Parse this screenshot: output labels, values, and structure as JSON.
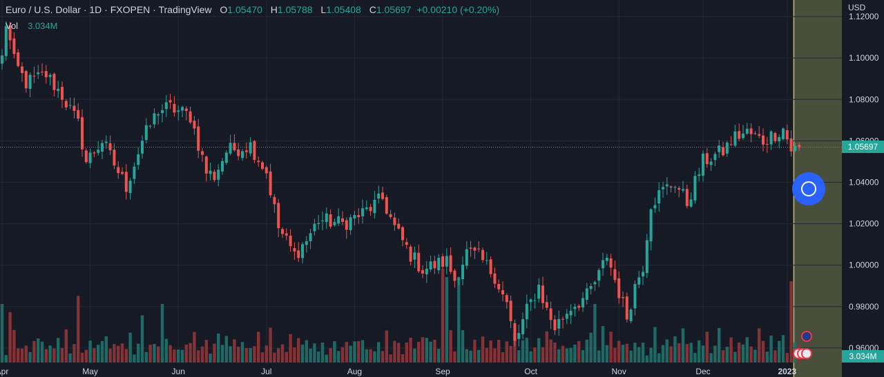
{
  "legend": {
    "title": "Euro / U.S. Dollar · 1D · FXOPEN · TradingView",
    "o_key": "O",
    "o_val": "1.05470",
    "h_key": "H",
    "h_val": "1.05788",
    "l_key": "L",
    "l_val": "1.05408",
    "c_key": "C",
    "c_val": "1.05697",
    "change": "+0.00210 (+0.20%)",
    "vol_label": "Vol",
    "vol_value": "3.034M"
  },
  "axis": {
    "currency": "USD",
    "current_price_label": "1.05697",
    "current_volume_label": "3.034M"
  },
  "colors": {
    "bull": "#26a69a",
    "bear": "#ef5350",
    "background": "#161a25",
    "highlight": "#5b6243",
    "button": "#2962ff"
  },
  "chart_data": {
    "type": "candlestick",
    "x_label": "",
    "y_label": "",
    "ylim": [
      0.946,
      1.128
    ],
    "y_ticks": [
      "1.12000",
      "1.10000",
      "1.08000",
      "1.06000",
      "1.04000",
      "1.02000",
      "1.00000",
      "0.98000",
      "0.96000"
    ],
    "y_tick_values": [
      1.12,
      1.1,
      1.08,
      1.06,
      1.04,
      1.02,
      1.0,
      0.98,
      0.96
    ],
    "x_ticks": [
      "Apr",
      "May",
      "Jun",
      "Jul",
      "Aug",
      "Sep",
      "Oct",
      "Nov",
      "Dec",
      "2023"
    ],
    "x_tick_positions": [
      0,
      22,
      44,
      66,
      88,
      110,
      132,
      154,
      175,
      196
    ],
    "last_price": 1.05697,
    "highlight_start_index": 198,
    "key_points": [
      [
        0,
        1.1
      ],
      [
        1,
        1.117
      ],
      [
        3,
        1.098
      ],
      [
        6,
        1.088
      ],
      [
        11,
        1.092
      ],
      [
        15,
        1.082
      ],
      [
        19,
        1.068
      ],
      [
        21,
        1.05
      ],
      [
        25,
        1.06
      ],
      [
        29,
        1.045
      ],
      [
        31,
        1.038
      ],
      [
        35,
        1.06
      ],
      [
        39,
        1.075
      ],
      [
        42,
        1.076
      ],
      [
        47,
        1.072
      ],
      [
        51,
        1.045
      ],
      [
        53,
        1.043
      ],
      [
        56,
        1.055
      ],
      [
        62,
        1.058
      ],
      [
        66,
        1.045
      ],
      [
        69,
        1.018
      ],
      [
        73,
        1.005
      ],
      [
        76,
        1.012
      ],
      [
        79,
        1.022
      ],
      [
        85,
        1.02
      ],
      [
        90,
        1.025
      ],
      [
        95,
        1.032
      ],
      [
        98,
        1.018
      ],
      [
        102,
        1.005
      ],
      [
        105,
        0.998
      ],
      [
        108,
        1.0
      ],
      [
        111,
        1.002
      ],
      [
        113,
        0.993
      ],
      [
        116,
        1.006
      ],
      [
        119,
        1.004
      ],
      [
        123,
        0.995
      ],
      [
        126,
        0.981
      ],
      [
        128,
        0.962
      ],
      [
        131,
        0.978
      ],
      [
        134,
        0.99
      ],
      [
        136,
        0.978
      ],
      [
        138,
        0.97
      ],
      [
        142,
        0.98
      ],
      [
        146,
        0.985
      ],
      [
        149,
        0.995
      ],
      [
        151,
        1.005
      ],
      [
        153,
        0.993
      ],
      [
        156,
        0.975
      ],
      [
        158,
        0.99
      ],
      [
        160,
        1.0
      ],
      [
        162,
        1.03
      ],
      [
        165,
        1.036
      ],
      [
        168,
        1.04
      ],
      [
        171,
        1.03
      ],
      [
        175,
        1.05
      ],
      [
        180,
        1.055
      ],
      [
        183,
        1.062
      ],
      [
        186,
        1.064
      ],
      [
        190,
        1.06
      ],
      [
        195,
        1.066
      ],
      [
        197,
        1.056
      ]
    ],
    "volume_levels": [
      0.32,
      0.12,
      0.22,
      0.34,
      0.14,
      0.2,
      0.28,
      0.18,
      0.3,
      0.24,
      0.26,
      0.2,
      0.22,
      0.16,
      0.25,
      0.19
    ],
    "volume_spikes": [
      [
        0,
        0.72
      ],
      [
        2,
        0.62
      ],
      [
        19,
        0.82
      ],
      [
        35,
        0.58
      ],
      [
        40,
        0.72
      ],
      [
        110,
        1.15
      ],
      [
        111,
        1.05
      ],
      [
        114,
        1.05
      ],
      [
        148,
        0.72
      ],
      [
        150,
        0.45
      ],
      [
        170,
        0.42
      ],
      [
        176,
        0.38
      ],
      [
        189,
        0.42
      ],
      [
        197,
        1.0
      ]
    ]
  }
}
